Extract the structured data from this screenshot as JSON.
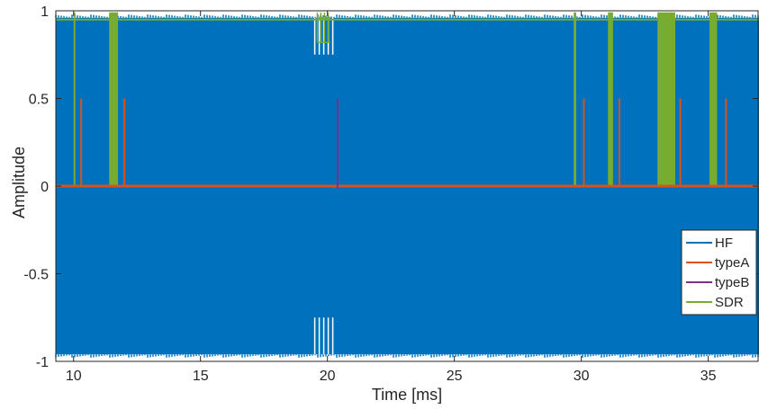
{
  "chart_data": {
    "type": "line",
    "title": "",
    "xlabel": "Time [ms]",
    "ylabel": "Amplitude",
    "xlim": [
      9.3,
      37.0
    ],
    "ylim": [
      -1,
      1
    ],
    "xticks": [
      10,
      15,
      20,
      25,
      30,
      35
    ],
    "yticks": [
      -1,
      -0.5,
      0,
      0.5,
      1
    ],
    "xtick_labels": [
      "10",
      "15",
      "20",
      "25",
      "30",
      "35"
    ],
    "ytick_labels": [
      "-1",
      "-0.5",
      "0",
      "0.5",
      "1"
    ],
    "grid": false,
    "legend_position": "bottom-right",
    "series": [
      {
        "name": "HF",
        "color": "#0072bd",
        "style": "dense oscillating band",
        "envelope_upper": 0.96,
        "envelope_lower": -0.96,
        "dips_near_x": [
          19.5,
          20.0
        ],
        "dip_amplitude": 0.75
      },
      {
        "name": "typeA",
        "color": "#d95319",
        "baseline": 0,
        "spikes": [
          {
            "x": 10.3,
            "y": 0.5
          },
          {
            "x": 12.0,
            "y": 0.5
          },
          {
            "x": 30.1,
            "y": 0.5
          },
          {
            "x": 31.5,
            "y": 0.5
          },
          {
            "x": 33.9,
            "y": 0.5
          },
          {
            "x": 35.7,
            "y": 0.5
          }
        ]
      },
      {
        "name": "typeB",
        "color": "#7e2f8e",
        "baseline": 0,
        "spikes": [
          {
            "x": 20.4,
            "y": 0.5
          }
        ]
      },
      {
        "name": "SDR",
        "color": "#77ac30",
        "level_high": 0.95,
        "level_low": 0,
        "pulses": [
          {
            "start": 10.0,
            "end": 10.05
          },
          {
            "start": 11.4,
            "end": 11.75
          },
          {
            "start": 29.7,
            "end": 29.8
          },
          {
            "start": 31.05,
            "end": 31.25
          },
          {
            "start": 33.0,
            "end": 33.7
          },
          {
            "start": 35.05,
            "end": 35.35
          }
        ],
        "bursts": [
          {
            "start": 19.6,
            "end": 20.1,
            "low": 0.82
          }
        ]
      }
    ]
  }
}
